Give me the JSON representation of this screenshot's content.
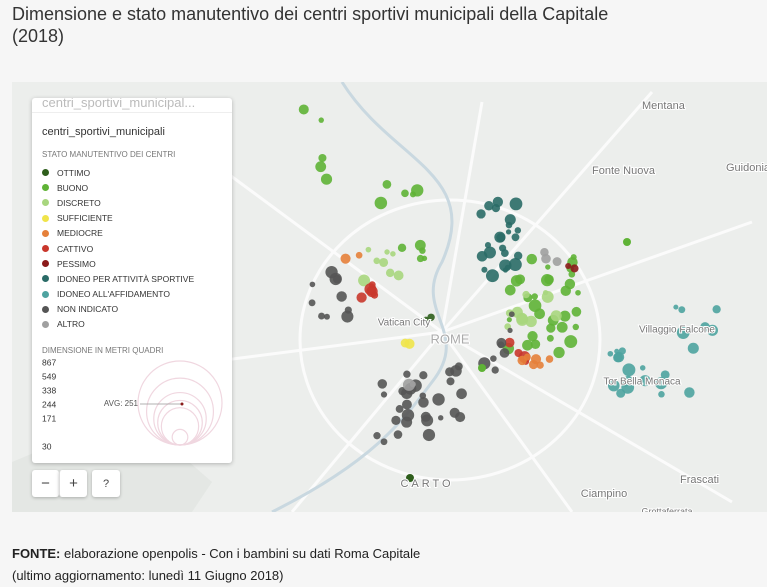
{
  "header": {
    "title": "Dimensione e stato manutentivo dei centri sportivi municipali della Capitale (2018)"
  },
  "map": {
    "search_placeholder": "centri_sportivi_municipal...",
    "layer_title": "centri_sportivi_municipali",
    "legend": {
      "title": "STATO MANUTENTIVO DEI CENTRI",
      "items": [
        {
          "label": "OTTIMO",
          "color": "#2e5e1c"
        },
        {
          "label": "BUONO",
          "color": "#5fb336"
        },
        {
          "label": "DISCRETO",
          "color": "#a8d67e"
        },
        {
          "label": "SUFFICIENTE",
          "color": "#f0e44a"
        },
        {
          "label": "MEDIOCRE",
          "color": "#e5803a"
        },
        {
          "label": "CATTIVO",
          "color": "#c9372c"
        },
        {
          "label": "PESSIMO",
          "color": "#8b1a1a"
        },
        {
          "label": "IDONEO PER ATTIVITÀ SPORTIVE",
          "color": "#2a6b67"
        },
        {
          "label": "IDONEO ALL'AFFIDAMENTO",
          "color": "#4ea3a0"
        },
        {
          "label": "NON INDICATO",
          "color": "#555555"
        },
        {
          "label": "ALTRO",
          "color": "#a0a0a0"
        }
      ]
    },
    "size_legend": {
      "title": "DIMENSIONE IN METRI QUADRI",
      "values": [
        867,
        549,
        338,
        244,
        171,
        30
      ],
      "avg_label": "AVG: 251"
    },
    "place_labels": [
      "Mentana",
      "Fonte Nuova",
      "Guidonia",
      "Vatican City",
      "ROME",
      "Villaggio Falcone",
      "Tor Bella Monaca",
      "Frascati",
      "Ciampino",
      "CARTO",
      "Grottaferrata"
    ],
    "controls": {
      "zoom_out": "−",
      "zoom_in": "+",
      "help": "?"
    }
  },
  "footer": {
    "source_label": "FONTE:",
    "source_text": "elaborazione openpolis - Con i bambini su dati Roma Capitale",
    "update": "(ultimo aggiornamento: lunedì 11 Giugno 2018)"
  }
}
